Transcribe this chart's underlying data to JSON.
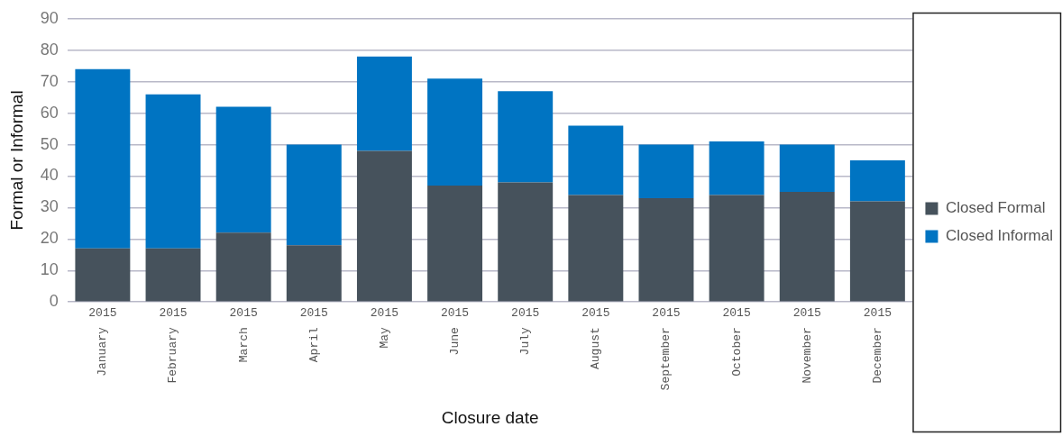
{
  "chart_data": {
    "type": "bar",
    "stacked": true,
    "xlabel": "Closure date",
    "ylabel": "Formal or Informal",
    "categories": [
      "2015 January",
      "2015 February",
      "2015 March",
      "2015 April",
      "2015 May",
      "2015 June",
      "2015 July",
      "2015 August",
      "2015 September",
      "2015 October",
      "2015 November",
      "2015 December"
    ],
    "series": [
      {
        "name": "Closed Formal",
        "color": "#46525c",
        "values": [
          17,
          17,
          22,
          18,
          48,
          37,
          38,
          34,
          33,
          34,
          35,
          32
        ]
      },
      {
        "name": "Closed Informal",
        "color": "#0074c2",
        "values": [
          57,
          49,
          40,
          32,
          30,
          34,
          29,
          22,
          17,
          17,
          15,
          13
        ]
      }
    ],
    "ylim": [
      0,
      90
    ],
    "yticks": [
      0,
      10,
      20,
      30,
      40,
      50,
      60,
      70,
      80,
      90
    ],
    "grid": "y",
    "legend": "right"
  }
}
